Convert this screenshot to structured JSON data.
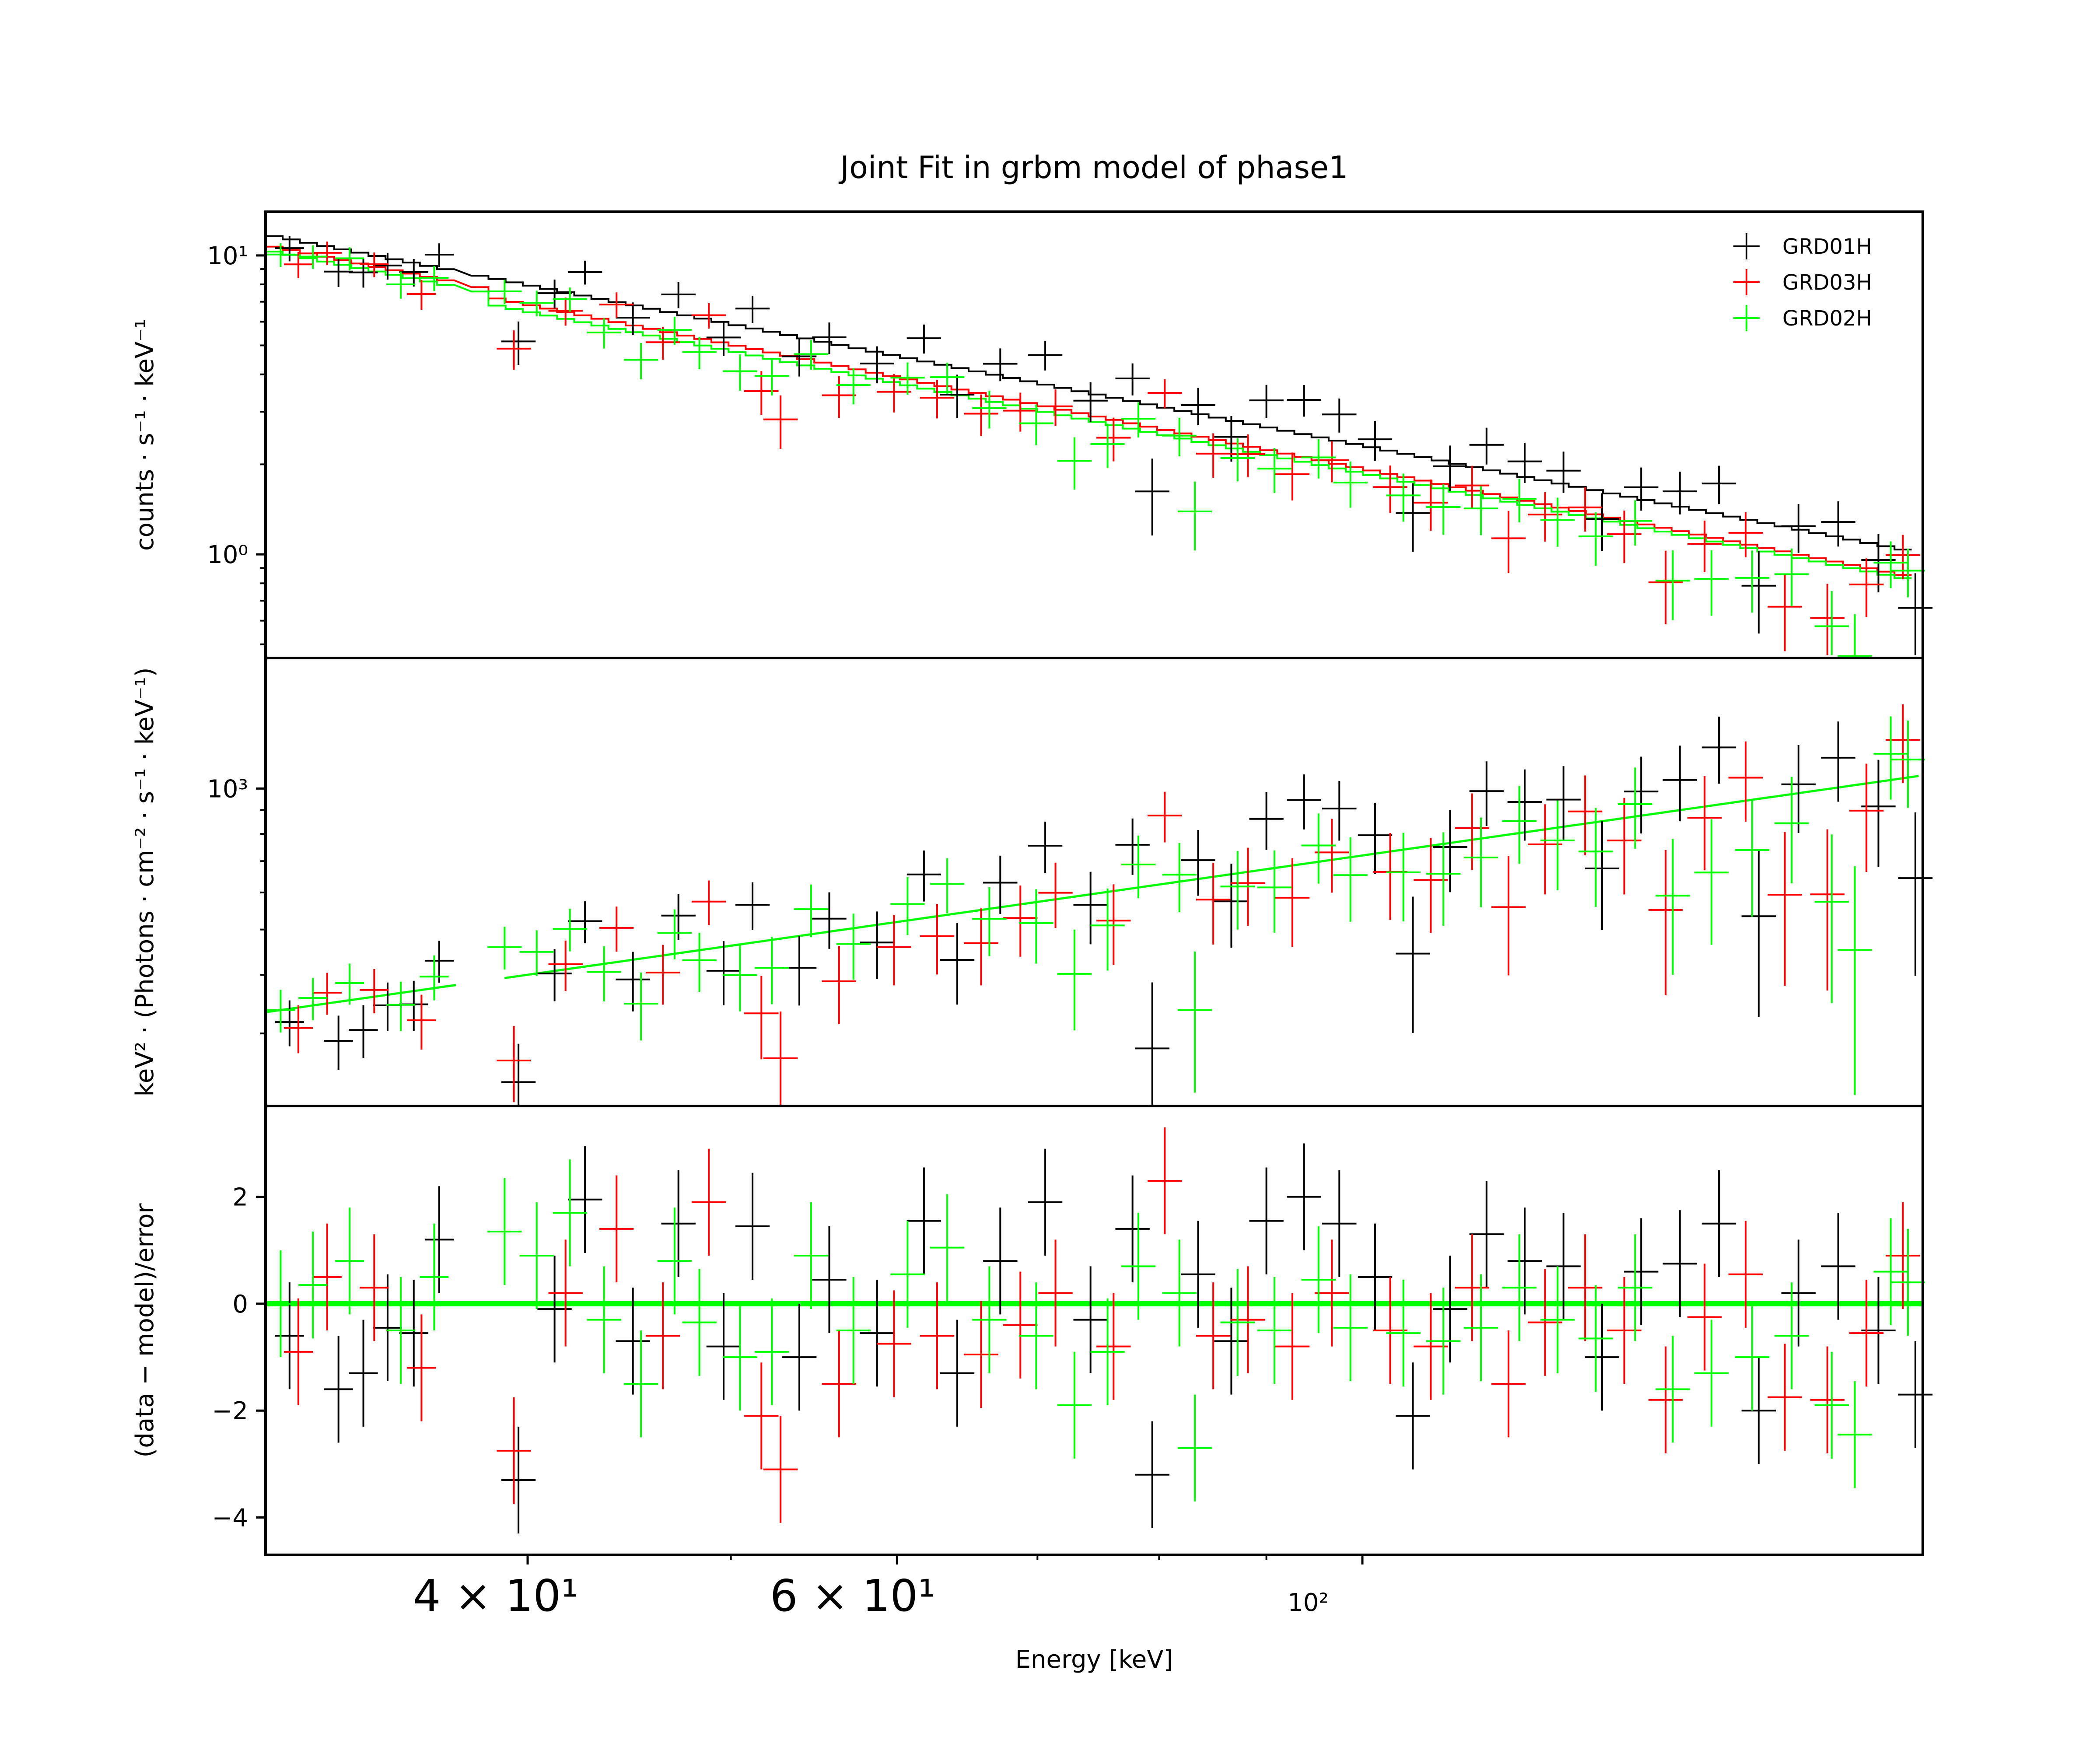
{
  "chart_data": {
    "type": "scatter",
    "title": "Joint Fit  in grbm model of phase1",
    "xlabel": "Energy [keV]",
    "xscale": "log",
    "xlim": [
      30,
      185
    ],
    "x_tick_labels": [
      {
        "value": 40,
        "label": "4 × 10¹"
      },
      {
        "value": 60,
        "label": "6 × 10¹"
      },
      {
        "value": 100,
        "label": "10²"
      }
    ],
    "legend": {
      "placement": "top-right",
      "entries": [
        {
          "name": "GRD01H",
          "color": "#000000"
        },
        {
          "name": "GRD03H",
          "color": "#ff0000"
        },
        {
          "name": "GRD02H",
          "color": "#00ff00"
        }
      ]
    },
    "panels": [
      {
        "name": "counts",
        "ylabel": "counts · s⁻¹ · keV⁻¹",
        "yscale": "log",
        "ylim": [
          0.45,
          14.0
        ],
        "y_tick_labels": [
          {
            "value": 10,
            "label": "10¹"
          },
          {
            "value": 1,
            "label": "10⁰"
          }
        ],
        "model_counts": [
          {
            "name": "GRD01H",
            "at_30keV": 11.6,
            "slope": -1.35,
            "jump_at_39keV": 1.0
          },
          {
            "name": "GRD03H",
            "at_30keV": 10.7,
            "slope": -1.38,
            "jump_at_39keV": 0.94
          },
          {
            "name": "GRD02H",
            "at_30keV": 10.3,
            "slope": -1.36,
            "jump_at_39keV": 0.92
          }
        ]
      },
      {
        "name": "unfolded",
        "ylabel": "keV² · (Photons · cm⁻² · s⁻¹ · keV⁻¹)",
        "yscale": "log",
        "ylim": [
          210,
          1900
        ],
        "y_tick_labels": [
          {
            "value": 1000,
            "label": "10³"
          }
        ],
        "model_eeuf": {
          "at_30keV": 333,
          "slope": 0.64
        }
      },
      {
        "name": "residuals",
        "ylabel": "(data − model)/error",
        "yscale": "linear",
        "ylim": [
          -4.7,
          3.7
        ],
        "y_tick_labels": [
          {
            "value": 2,
            "label": "2"
          },
          {
            "value": 0,
            "label": "0"
          },
          {
            "value": -2,
            "label": "−2"
          },
          {
            "value": -4,
            "label": "−4"
          }
        ],
        "zero_line": 0
      }
    ],
    "series": [
      {
        "name": "GRD01H",
        "color": "#000000",
        "points": [
          {
            "x": 30.8,
            "r": -0.6
          },
          {
            "x": 32.5,
            "r": -1.6
          },
          {
            "x": 33.4,
            "r": -1.3
          },
          {
            "x": 34.3,
            "r": -0.45
          },
          {
            "x": 35.3,
            "r": -0.55
          },
          {
            "x": 36.3,
            "r": 1.2
          },
          {
            "x": 39.6,
            "r": -3.3
          },
          {
            "x": 41.2,
            "r": -0.1
          },
          {
            "x": 42.6,
            "r": 1.95
          },
          {
            "x": 44.9,
            "r": -0.7
          },
          {
            "x": 47.2,
            "r": 1.5
          },
          {
            "x": 49.6,
            "r": -0.8
          },
          {
            "x": 51.2,
            "r": 1.45
          },
          {
            "x": 53.9,
            "r": -1.0
          },
          {
            "x": 55.7,
            "r": 0.45
          },
          {
            "x": 58.7,
            "r": -0.55
          },
          {
            "x": 61.8,
            "r": 1.55
          },
          {
            "x": 64.1,
            "r": -1.3
          },
          {
            "x": 67.2,
            "r": 0.8
          },
          {
            "x": 70.6,
            "r": 1.9
          },
          {
            "x": 74.2,
            "r": -0.3
          },
          {
            "x": 77.7,
            "r": 1.4
          },
          {
            "x": 79.4,
            "r": -3.2
          },
          {
            "x": 83.5,
            "r": 0.55
          },
          {
            "x": 86.6,
            "r": -0.7
          },
          {
            "x": 90.0,
            "r": 1.55
          },
          {
            "x": 93.8,
            "r": 2.0
          },
          {
            "x": 97.5,
            "r": 1.5
          },
          {
            "x": 101.4,
            "r": 0.5
          },
          {
            "x": 105.7,
            "r": -2.1
          },
          {
            "x": 110.1,
            "r": -0.1
          },
          {
            "x": 114.6,
            "r": 1.3
          },
          {
            "x": 119.5,
            "r": 0.8
          },
          {
            "x": 124.7,
            "r": 0.7
          },
          {
            "x": 130.1,
            "r": -1.0
          },
          {
            "x": 135.8,
            "r": 0.6
          },
          {
            "x": 141.7,
            "r": 0.75
          },
          {
            "x": 147.9,
            "r": 1.5
          },
          {
            "x": 154.5,
            "r": -2.0
          },
          {
            "x": 161.4,
            "r": 0.2
          },
          {
            "x": 168.6,
            "r": 0.7
          },
          {
            "x": 176.2,
            "r": -0.5
          },
          {
            "x": 183.5,
            "r": -1.7
          }
        ]
      },
      {
        "name": "GRD03H",
        "color": "#ff0000",
        "points": [
          {
            "x": 31.1,
            "r": -0.9
          },
          {
            "x": 32.1,
            "r": 0.5
          },
          {
            "x": 33.8,
            "r": 0.3
          },
          {
            "x": 35.6,
            "r": -1.2
          },
          {
            "x": 39.4,
            "r": -2.75
          },
          {
            "x": 41.7,
            "r": 0.2
          },
          {
            "x": 44.1,
            "r": 1.4
          },
          {
            "x": 46.4,
            "r": -0.6
          },
          {
            "x": 48.8,
            "r": 1.9
          },
          {
            "x": 51.7,
            "r": -2.1
          },
          {
            "x": 52.8,
            "r": -3.1
          },
          {
            "x": 56.3,
            "r": -1.5
          },
          {
            "x": 59.8,
            "r": -0.75
          },
          {
            "x": 62.7,
            "r": -0.6
          },
          {
            "x": 65.8,
            "r": -0.95
          },
          {
            "x": 68.7,
            "r": -0.4
          },
          {
            "x": 71.4,
            "r": 0.2
          },
          {
            "x": 76.1,
            "r": -0.8
          },
          {
            "x": 80.5,
            "r": 2.3
          },
          {
            "x": 84.9,
            "r": -0.6
          },
          {
            "x": 88.2,
            "r": -0.3
          },
          {
            "x": 92.6,
            "r": -0.8
          },
          {
            "x": 96.7,
            "r": 0.2
          },
          {
            "x": 103.1,
            "r": -0.5
          },
          {
            "x": 107.8,
            "r": -0.8
          },
          {
            "x": 112.8,
            "r": 0.3
          },
          {
            "x": 117.4,
            "r": -1.5
          },
          {
            "x": 122.2,
            "r": -0.35
          },
          {
            "x": 127.7,
            "r": 0.3
          },
          {
            "x": 133.3,
            "r": -0.5
          },
          {
            "x": 139.5,
            "r": -1.8
          },
          {
            "x": 145.6,
            "r": -0.25
          },
          {
            "x": 152.3,
            "r": 0.55
          },
          {
            "x": 159.0,
            "r": -1.75
          },
          {
            "x": 166.6,
            "r": -1.8
          },
          {
            "x": 173.9,
            "r": -0.55
          },
          {
            "x": 181.0,
            "r": 0.9
          }
        ]
      },
      {
        "name": "GRD02H",
        "color": "#00ff00",
        "points": [
          {
            "x": 30.5,
            "r": 0.0
          },
          {
            "x": 31.6,
            "r": 0.35
          },
          {
            "x": 32.9,
            "r": 0.8
          },
          {
            "x": 34.8,
            "r": -0.5
          },
          {
            "x": 36.1,
            "r": 0.5
          },
          {
            "x": 39.0,
            "r": 1.35
          },
          {
            "x": 40.4,
            "r": 0.9
          },
          {
            "x": 41.9,
            "r": 1.7
          },
          {
            "x": 43.5,
            "r": -0.3
          },
          {
            "x": 45.3,
            "r": -1.5
          },
          {
            "x": 47.0,
            "r": 0.8
          },
          {
            "x": 48.3,
            "r": -0.35
          },
          {
            "x": 50.5,
            "r": -1.0
          },
          {
            "x": 52.3,
            "r": -0.9
          },
          {
            "x": 54.6,
            "r": 0.9
          },
          {
            "x": 57.2,
            "r": -0.5
          },
          {
            "x": 60.7,
            "r": 0.55
          },
          {
            "x": 63.4,
            "r": 1.05
          },
          {
            "x": 66.4,
            "r": -0.3
          },
          {
            "x": 69.9,
            "r": -0.6
          },
          {
            "x": 72.9,
            "r": -1.9
          },
          {
            "x": 75.6,
            "r": -0.9
          },
          {
            "x": 78.2,
            "r": 0.7
          },
          {
            "x": 81.8,
            "r": 0.2
          },
          {
            "x": 83.2,
            "r": -2.7
          },
          {
            "x": 87.2,
            "r": -0.35
          },
          {
            "x": 90.8,
            "r": -0.5
          },
          {
            "x": 95.3,
            "r": 0.45
          },
          {
            "x": 98.7,
            "r": -0.45
          },
          {
            "x": 104.6,
            "r": -0.55
          },
          {
            "x": 109.3,
            "r": -0.7
          },
          {
            "x": 113.9,
            "r": -0.45
          },
          {
            "x": 118.8,
            "r": 0.3
          },
          {
            "x": 123.9,
            "r": -0.3
          },
          {
            "x": 129.2,
            "r": -0.65
          },
          {
            "x": 134.9,
            "r": 0.3
          },
          {
            "x": 140.6,
            "r": -1.6
          },
          {
            "x": 146.7,
            "r": -1.3
          },
          {
            "x": 153.4,
            "r": -1.0
          },
          {
            "x": 160.2,
            "r": -0.6
          },
          {
            "x": 167.4,
            "r": -1.9
          },
          {
            "x": 171.7,
            "r": -2.45
          },
          {
            "x": 178.6,
            "r": 0.6
          },
          {
            "x": 182.0,
            "r": 0.4
          }
        ]
      }
    ]
  }
}
